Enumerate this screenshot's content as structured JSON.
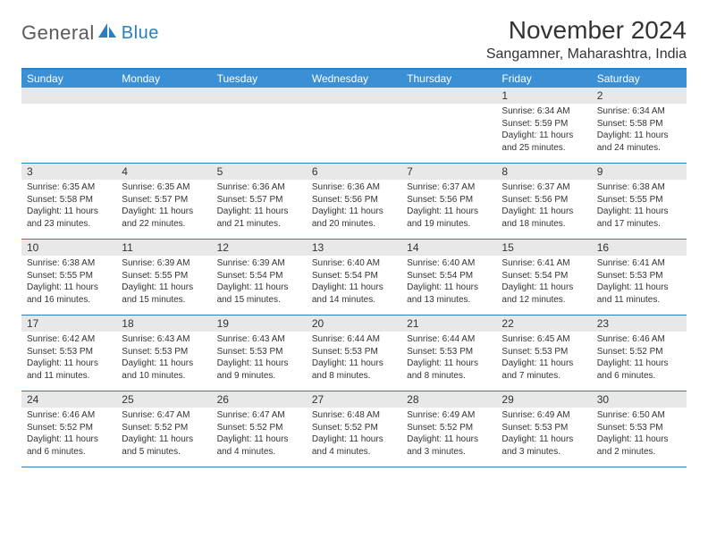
{
  "logo": {
    "general": "General",
    "blue": "Blue"
  },
  "header": {
    "title": "November 2024",
    "subtitle": "Sangamner, Maharashtra, India"
  },
  "palette": {
    "header_bar": "#3b8fd4",
    "border": "#2a7fbf",
    "daynum_bg": "#e8e8e8",
    "text": "#333333",
    "logo_gray": "#5a5a5a",
    "logo_blue": "#2a7fbf",
    "white": "#ffffff"
  },
  "typography": {
    "title_fontsize": 28,
    "subtitle_fontsize": 16,
    "dow_fontsize": 12,
    "daynum_fontsize": 12,
    "body_fontsize": 10
  },
  "days_of_week": [
    "Sunday",
    "Monday",
    "Tuesday",
    "Wednesday",
    "Thursday",
    "Friday",
    "Saturday"
  ],
  "weeks": [
    [
      null,
      null,
      null,
      null,
      null,
      {
        "n": "1",
        "sr": "6:34 AM",
        "ss": "5:59 PM",
        "dl": "11 hours and 25 minutes."
      },
      {
        "n": "2",
        "sr": "6:34 AM",
        "ss": "5:58 PM",
        "dl": "11 hours and 24 minutes."
      }
    ],
    [
      {
        "n": "3",
        "sr": "6:35 AM",
        "ss": "5:58 PM",
        "dl": "11 hours and 23 minutes."
      },
      {
        "n": "4",
        "sr": "6:35 AM",
        "ss": "5:57 PM",
        "dl": "11 hours and 22 minutes."
      },
      {
        "n": "5",
        "sr": "6:36 AM",
        "ss": "5:57 PM",
        "dl": "11 hours and 21 minutes."
      },
      {
        "n": "6",
        "sr": "6:36 AM",
        "ss": "5:56 PM",
        "dl": "11 hours and 20 minutes."
      },
      {
        "n": "7",
        "sr": "6:37 AM",
        "ss": "5:56 PM",
        "dl": "11 hours and 19 minutes."
      },
      {
        "n": "8",
        "sr": "6:37 AM",
        "ss": "5:56 PM",
        "dl": "11 hours and 18 minutes."
      },
      {
        "n": "9",
        "sr": "6:38 AM",
        "ss": "5:55 PM",
        "dl": "11 hours and 17 minutes."
      }
    ],
    [
      {
        "n": "10",
        "sr": "6:38 AM",
        "ss": "5:55 PM",
        "dl": "11 hours and 16 minutes."
      },
      {
        "n": "11",
        "sr": "6:39 AM",
        "ss": "5:55 PM",
        "dl": "11 hours and 15 minutes."
      },
      {
        "n": "12",
        "sr": "6:39 AM",
        "ss": "5:54 PM",
        "dl": "11 hours and 15 minutes."
      },
      {
        "n": "13",
        "sr": "6:40 AM",
        "ss": "5:54 PM",
        "dl": "11 hours and 14 minutes."
      },
      {
        "n": "14",
        "sr": "6:40 AM",
        "ss": "5:54 PM",
        "dl": "11 hours and 13 minutes."
      },
      {
        "n": "15",
        "sr": "6:41 AM",
        "ss": "5:54 PM",
        "dl": "11 hours and 12 minutes."
      },
      {
        "n": "16",
        "sr": "6:41 AM",
        "ss": "5:53 PM",
        "dl": "11 hours and 11 minutes."
      }
    ],
    [
      {
        "n": "17",
        "sr": "6:42 AM",
        "ss": "5:53 PM",
        "dl": "11 hours and 11 minutes."
      },
      {
        "n": "18",
        "sr": "6:43 AM",
        "ss": "5:53 PM",
        "dl": "11 hours and 10 minutes."
      },
      {
        "n": "19",
        "sr": "6:43 AM",
        "ss": "5:53 PM",
        "dl": "11 hours and 9 minutes."
      },
      {
        "n": "20",
        "sr": "6:44 AM",
        "ss": "5:53 PM",
        "dl": "11 hours and 8 minutes."
      },
      {
        "n": "21",
        "sr": "6:44 AM",
        "ss": "5:53 PM",
        "dl": "11 hours and 8 minutes."
      },
      {
        "n": "22",
        "sr": "6:45 AM",
        "ss": "5:53 PM",
        "dl": "11 hours and 7 minutes."
      },
      {
        "n": "23",
        "sr": "6:46 AM",
        "ss": "5:52 PM",
        "dl": "11 hours and 6 minutes."
      }
    ],
    [
      {
        "n": "24",
        "sr": "6:46 AM",
        "ss": "5:52 PM",
        "dl": "11 hours and 6 minutes."
      },
      {
        "n": "25",
        "sr": "6:47 AM",
        "ss": "5:52 PM",
        "dl": "11 hours and 5 minutes."
      },
      {
        "n": "26",
        "sr": "6:47 AM",
        "ss": "5:52 PM",
        "dl": "11 hours and 4 minutes."
      },
      {
        "n": "27",
        "sr": "6:48 AM",
        "ss": "5:52 PM",
        "dl": "11 hours and 4 minutes."
      },
      {
        "n": "28",
        "sr": "6:49 AM",
        "ss": "5:52 PM",
        "dl": "11 hours and 3 minutes."
      },
      {
        "n": "29",
        "sr": "6:49 AM",
        "ss": "5:53 PM",
        "dl": "11 hours and 3 minutes."
      },
      {
        "n": "30",
        "sr": "6:50 AM",
        "ss": "5:53 PM",
        "dl": "11 hours and 2 minutes."
      }
    ]
  ],
  "labels": {
    "sunrise": "Sunrise: ",
    "sunset": "Sunset: ",
    "daylight": "Daylight: "
  }
}
